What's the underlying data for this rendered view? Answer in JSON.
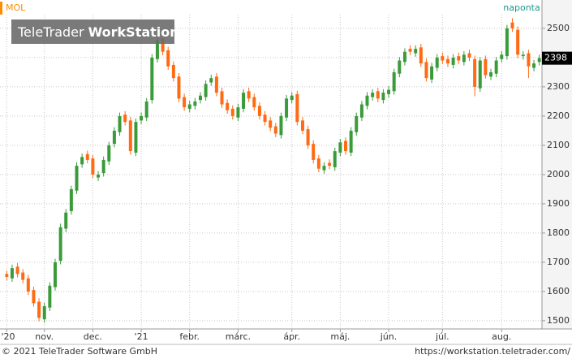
{
  "chart_data": {
    "type": "candlestick",
    "title": "MOL",
    "interval": "naponta",
    "watermark": {
      "brand": "TeleTrader",
      "product": "WorkStation"
    },
    "footer": {
      "left": "© 2021 TeleTrader Software GmbH",
      "right": "https://workstation.teletrader.com/"
    },
    "up_color": "#3a9b3a",
    "down_color": "#ff6a13",
    "title_color": "#ff8c00",
    "grid": true,
    "ylim": [
      1472,
      2547
    ],
    "yticks": [
      1500,
      1600,
      1700,
      1800,
      1900,
      2000,
      2100,
      2200,
      2300,
      2400,
      2500
    ],
    "categories": [
      "'20",
      null,
      null,
      null,
      null,
      null,
      null,
      "nov.",
      null,
      null,
      null,
      null,
      null,
      null,
      null,
      null,
      "dec.",
      null,
      null,
      null,
      null,
      null,
      null,
      null,
      null,
      "'21",
      null,
      null,
      null,
      null,
      null,
      null,
      null,
      null,
      "febr.",
      null,
      null,
      null,
      null,
      null,
      null,
      null,
      null,
      "márc.",
      null,
      null,
      null,
      null,
      null,
      null,
      null,
      null,
      null,
      "ápr.",
      null,
      null,
      null,
      null,
      null,
      null,
      null,
      null,
      "máj.",
      null,
      null,
      null,
      null,
      null,
      null,
      null,
      null,
      "jún.",
      null,
      null,
      null,
      null,
      null,
      null,
      null,
      null,
      null,
      "júl.",
      null,
      null,
      null,
      null,
      null,
      null,
      null,
      null,
      null,
      null,
      "aug.",
      null,
      null,
      null,
      null,
      null,
      null,
      null
    ],
    "open": [
      1660,
      1645,
      1685,
      1665,
      1645,
      1605,
      1565,
      1505,
      1545,
      1615,
      1705,
      1815,
      1875,
      1945,
      2035,
      2070,
      2055,
      1990,
      2005,
      2045,
      2105,
      2145,
      2205,
      2185,
      2075,
      2185,
      2195,
      2255,
      2395,
      2465,
      2425,
      2375,
      2335,
      2265,
      2225,
      2235,
      2255,
      2265,
      2315,
      2335,
      2285,
      2245,
      2225,
      2195,
      2225,
      2285,
      2265,
      2235,
      2205,
      2185,
      2165,
      2135,
      2195,
      2255,
      2275,
      2185,
      2155,
      2105,
      2055,
      2015,
      2040,
      2025,
      2075,
      2115,
      2075,
      2145,
      2195,
      2235,
      2265,
      2285,
      2255,
      2275,
      2285,
      2345,
      2385,
      2430,
      2415,
      2435,
      2385,
      2325,
      2365,
      2405,
      2395,
      2375,
      2405,
      2385,
      2415,
      2395,
      2295,
      2395,
      2335,
      2345,
      2395,
      2405,
      2520,
      2495,
      2405,
      2415,
      2365,
      2385
    ],
    "high": [
      1672,
      1692,
      1697,
      1677,
      1657,
      1617,
      1577,
      1562,
      1632,
      1712,
      1832,
      1882,
      1962,
      2042,
      2072,
      2082,
      2067,
      2012,
      2062,
      2112,
      2162,
      2212,
      2217,
      2197,
      2192,
      2212,
      2262,
      2412,
      2472,
      2477,
      2437,
      2387,
      2347,
      2277,
      2252,
      2262,
      2282,
      2322,
      2342,
      2347,
      2297,
      2257,
      2237,
      2242,
      2292,
      2297,
      2277,
      2247,
      2217,
      2197,
      2177,
      2212,
      2272,
      2282,
      2287,
      2197,
      2167,
      2117,
      2067,
      2042,
      2052,
      2092,
      2122,
      2127,
      2162,
      2212,
      2252,
      2282,
      2292,
      2297,
      2292,
      2302,
      2362,
      2402,
      2432,
      2442,
      2442,
      2447,
      2397,
      2382,
      2412,
      2417,
      2407,
      2412,
      2417,
      2422,
      2427,
      2407,
      2402,
      2407,
      2362,
      2402,
      2422,
      2512,
      2535,
      2507,
      2422,
      2427,
      2392,
      2410
    ],
    "low": [
      1638,
      1633,
      1648,
      1628,
      1588,
      1548,
      1498,
      1493,
      1533,
      1603,
      1693,
      1803,
      1863,
      1933,
      2023,
      2038,
      1988,
      1978,
      1993,
      2033,
      2093,
      2133,
      2168,
      2068,
      2063,
      2173,
      2183,
      2243,
      2383,
      2408,
      2358,
      2318,
      2248,
      2218,
      2213,
      2223,
      2243,
      2253,
      2303,
      2268,
      2228,
      2208,
      2188,
      2183,
      2213,
      2248,
      2218,
      2188,
      2168,
      2148,
      2128,
      2123,
      2183,
      2243,
      2168,
      2138,
      2088,
      2038,
      2008,
      2003,
      2018,
      2013,
      2063,
      2068,
      2063,
      2133,
      2183,
      2223,
      2253,
      2248,
      2243,
      2263,
      2273,
      2333,
      2373,
      2408,
      2403,
      2368,
      2318,
      2313,
      2353,
      2378,
      2368,
      2363,
      2378,
      2373,
      2388,
      2268,
      2283,
      2328,
      2323,
      2333,
      2383,
      2393,
      2488,
      2398,
      2393,
      2330,
      2353,
      2373
    ],
    "close": [
      1650,
      1680,
      1660,
      1640,
      1600,
      1560,
      1510,
      1550,
      1620,
      1700,
      1820,
      1870,
      1950,
      2030,
      2060,
      2050,
      2000,
      2000,
      2050,
      2100,
      2150,
      2200,
      2180,
      2080,
      2180,
      2200,
      2250,
      2400,
      2460,
      2420,
      2370,
      2330,
      2260,
      2230,
      2240,
      2250,
      2270,
      2310,
      2330,
      2280,
      2240,
      2220,
      2200,
      2230,
      2280,
      2260,
      2230,
      2200,
      2180,
      2160,
      2140,
      2200,
      2260,
      2270,
      2180,
      2150,
      2100,
      2050,
      2020,
      2030,
      2030,
      2080,
      2110,
      2080,
      2150,
      2200,
      2240,
      2270,
      2280,
      2260,
      2280,
      2290,
      2350,
      2390,
      2420,
      2420,
      2430,
      2380,
      2330,
      2370,
      2400,
      2390,
      2380,
      2400,
      2390,
      2410,
      2400,
      2300,
      2390,
      2340,
      2350,
      2390,
      2410,
      2500,
      2500,
      2410,
      2410,
      2370,
      2380,
      2398
    ]
  }
}
